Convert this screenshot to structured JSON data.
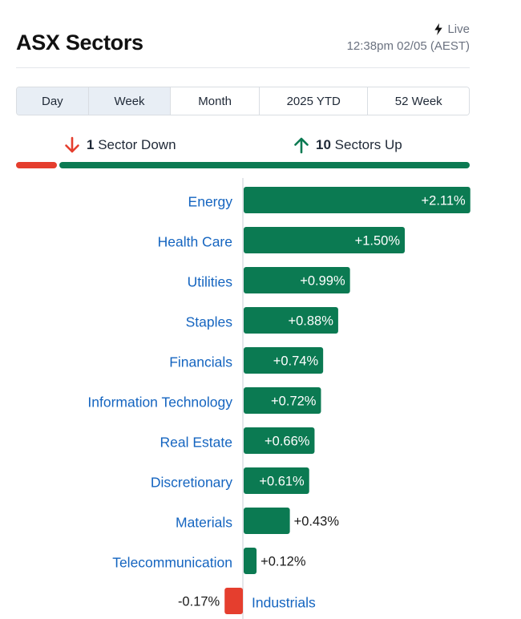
{
  "header": {
    "title": "ASX Sectors",
    "live_label": "Live",
    "timestamp": "12:38pm 02/05 (AEST)"
  },
  "tabs": [
    {
      "label": "Day",
      "active": true
    },
    {
      "label": "Week",
      "active": true
    },
    {
      "label": "Month",
      "active": false
    },
    {
      "label": "2025 YTD",
      "active": false
    },
    {
      "label": "52 Week",
      "active": false
    }
  ],
  "summary": {
    "down_count": "1",
    "down_text": "Sector Down",
    "up_count": "10",
    "up_text": "Sectors Up"
  },
  "colors": {
    "up": "#0b7a52",
    "down": "#e53e2e",
    "label": "#1565c0",
    "axis": "#c9ced4"
  },
  "chart_data": {
    "type": "bar",
    "orientation": "horizontal",
    "categories": [
      "Energy",
      "Health Care",
      "Utilities",
      "Staples",
      "Financials",
      "Information Technology",
      "Real Estate",
      "Discretionary",
      "Materials",
      "Telecommunication",
      "Industrials"
    ],
    "values": [
      2.11,
      1.5,
      0.99,
      0.88,
      0.74,
      0.72,
      0.66,
      0.61,
      0.43,
      0.12,
      -0.17
    ],
    "value_labels": [
      "+2.11%",
      "+1.50%",
      "+0.99%",
      "+0.88%",
      "+0.74%",
      "+0.72%",
      "+0.66%",
      "+0.61%",
      "+0.43%",
      "+0.12%",
      "-0.17%"
    ],
    "title": "",
    "xlabel": "",
    "ylabel": ""
  }
}
